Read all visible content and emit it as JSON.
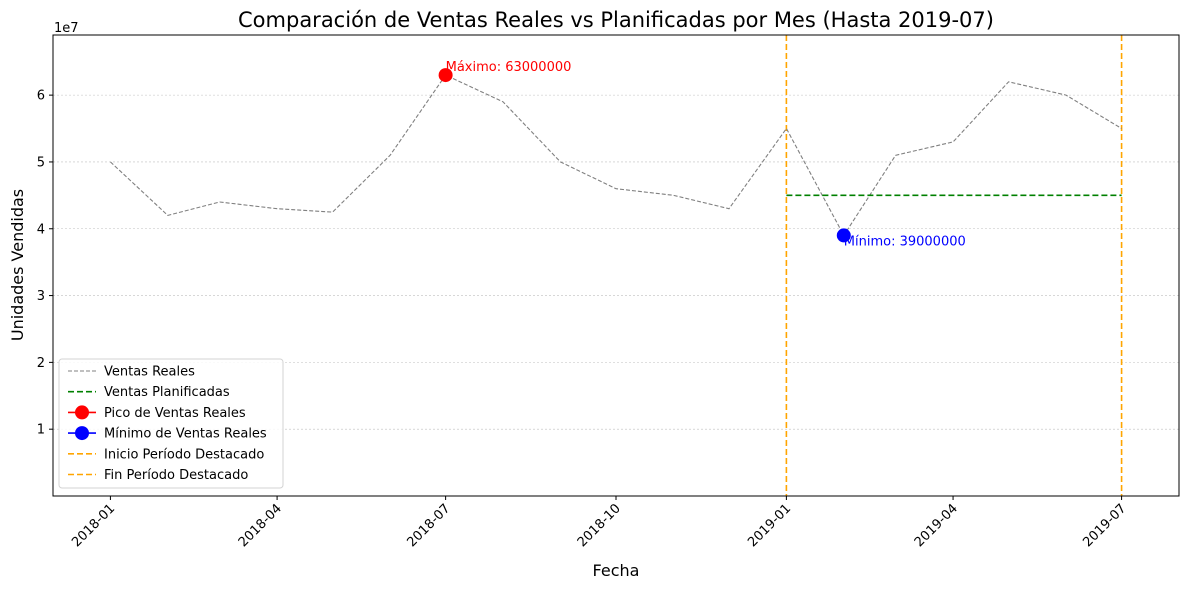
{
  "chart_data": {
    "type": "line",
    "title": "Comparación de Ventas Reales vs Planificadas por Mes (Hasta 2019-07)",
    "xlabel": "Fecha",
    "ylabel": "Unidades Vendidas",
    "y_multiplier_label": "1e7",
    "xlim": [
      "2017-12-01",
      "2019-08-01"
    ],
    "ylim": [
      0,
      69000000
    ],
    "x_ticks": [
      "2018-01",
      "2018-04",
      "2018-07",
      "2018-10",
      "2019-01",
      "2019-04",
      "2019-07"
    ],
    "y_ticks": [
      {
        "value": 10000000,
        "label": "1"
      },
      {
        "value": 20000000,
        "label": "2"
      },
      {
        "value": 30000000,
        "label": "3"
      },
      {
        "value": 40000000,
        "label": "4"
      },
      {
        "value": 50000000,
        "label": "5"
      },
      {
        "value": 60000000,
        "label": "6"
      }
    ],
    "grid": "horizontal",
    "legend_position": "lower-left",
    "series": [
      {
        "name": "Ventas Reales",
        "style": "dashed",
        "color": "#808080",
        "points": [
          {
            "x": "2018-01-01",
            "y": 50000000
          },
          {
            "x": "2018-02-01",
            "y": 42000000
          },
          {
            "x": "2018-03-01",
            "y": 44000000
          },
          {
            "x": "2018-04-01",
            "y": 43000000
          },
          {
            "x": "2018-05-01",
            "y": 42500000
          },
          {
            "x": "2018-06-01",
            "y": 51000000
          },
          {
            "x": "2018-07-01",
            "y": 63000000
          },
          {
            "x": "2018-08-01",
            "y": 59000000
          },
          {
            "x": "2018-09-01",
            "y": 50000000
          },
          {
            "x": "2018-10-01",
            "y": 46000000
          },
          {
            "x": "2018-11-01",
            "y": 45000000
          },
          {
            "x": "2018-12-01",
            "y": 43000000
          },
          {
            "x": "2019-01-01",
            "y": 55000000
          },
          {
            "x": "2019-02-01",
            "y": 39000000
          },
          {
            "x": "2019-03-01",
            "y": 51000000
          },
          {
            "x": "2019-04-01",
            "y": 53000000
          },
          {
            "x": "2019-05-01",
            "y": 62000000
          },
          {
            "x": "2019-06-01",
            "y": 60000000
          },
          {
            "x": "2019-07-01",
            "y": 55000000
          }
        ]
      },
      {
        "name": "Ventas Planificadas",
        "style": "dashed",
        "color": "#008000",
        "points": [
          {
            "x": "2019-01-01",
            "y": 45000000
          },
          {
            "x": "2019-07-01",
            "y": 45000000
          }
        ]
      }
    ],
    "markers": [
      {
        "name": "Pico de Ventas Reales",
        "x": "2018-07-01",
        "y": 63000000,
        "color": "#ff0000",
        "label": "Máximo: 63000000"
      },
      {
        "name": "Mínimo de Ventas Reales",
        "x": "2019-02-01",
        "y": 39000000,
        "color": "#0000ff",
        "label": "Mínimo: 39000000"
      }
    ],
    "vlines": [
      {
        "name": "Inicio Período Destacado",
        "x": "2019-01-01",
        "color": "#ffa500"
      },
      {
        "name": "Fin Período Destacado",
        "x": "2019-07-01",
        "color": "#ffa500"
      }
    ]
  }
}
